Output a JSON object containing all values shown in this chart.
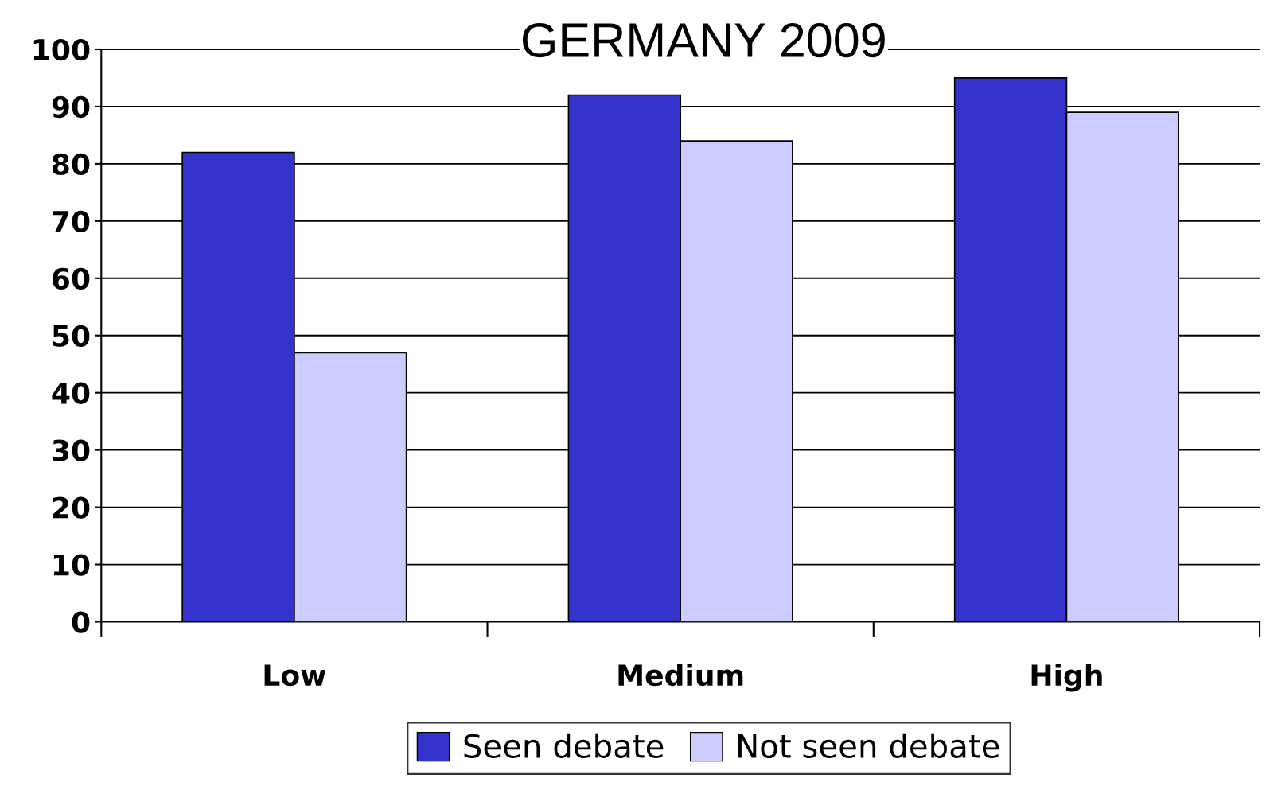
{
  "chart_data": {
    "type": "bar",
    "title": "GERMANY 2009",
    "categories": [
      "Low",
      "Medium",
      "High"
    ],
    "series": [
      {
        "name": "Seen debate",
        "color": "#3333cc",
        "values": [
          82,
          92,
          95
        ]
      },
      {
        "name": "Not seen debate",
        "color": "#ccccff",
        "values": [
          47,
          84,
          89
        ]
      }
    ],
    "ylim": [
      0,
      100
    ],
    "yticks": [
      0,
      10,
      20,
      30,
      40,
      50,
      60,
      70,
      80,
      90,
      100
    ],
    "grid": "y",
    "legend": "bottom"
  }
}
